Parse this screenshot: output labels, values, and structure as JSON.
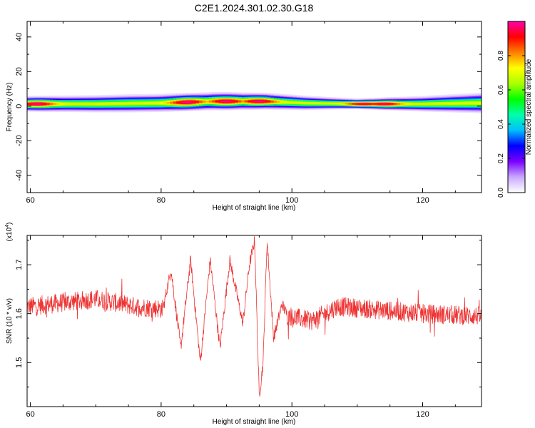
{
  "title": "C2E1.2024.301.02.30.G18",
  "chart_data": [
    {
      "type": "heatmap",
      "xlabel": "Height of straight line (km)",
      "ylabel": "Frequency (Hz)",
      "xlim": [
        59.5,
        129
      ],
      "ylim": [
        -50,
        49
      ],
      "x_ticks": [
        60,
        80,
        100,
        120
      ],
      "y_ticks": [
        40,
        20,
        0,
        -20,
        -40
      ],
      "grid": false,
      "band": {
        "center_hz": [
          {
            "x": 60,
            "y": 1.5
          },
          {
            "x": 70,
            "y": 1.5
          },
          {
            "x": 80,
            "y": 2.0
          },
          {
            "x": 88,
            "y": 3.0
          },
          {
            "x": 96,
            "y": 3.0
          },
          {
            "x": 102,
            "y": 2.0
          },
          {
            "x": 110,
            "y": 1.5
          },
          {
            "x": 120,
            "y": 1.5
          },
          {
            "x": 129,
            "y": 2.0
          }
        ],
        "halfwidth_hz": [
          {
            "x": 60,
            "y": 3.0
          },
          {
            "x": 75,
            "y": 3.5
          },
          {
            "x": 90,
            "y": 3.5
          },
          {
            "x": 100,
            "y": 3.0
          },
          {
            "x": 110,
            "y": 2.0
          },
          {
            "x": 120,
            "y": 3.0
          },
          {
            "x": 129,
            "y": 4.0
          }
        ],
        "peak_x_km": [
          61,
          84,
          90,
          95,
          111,
          114
        ]
      },
      "colorbar": {
        "label": "Normalized spectral amplitude",
        "ticks": [
          "0.0",
          "0.2",
          "0.4",
          "0.6",
          "0.8"
        ],
        "tick_values": [
          0.0,
          0.2,
          0.4,
          0.6,
          0.8
        ],
        "range": [
          0,
          1
        ],
        "colors": [
          "#ffffff",
          "#c9a9ff",
          "#7a00ff",
          "#0000ff",
          "#00bfff",
          "#00ffaa",
          "#00ff00",
          "#aaff00",
          "#ffff00",
          "#ff8000",
          "#ff0000",
          "#ff00aa"
        ]
      }
    },
    {
      "type": "line",
      "xlabel": "Height of straight line (km)",
      "ylabel": "SNR (10 * v/v)",
      "scale_label": "(x10",
      "scale_exp": "4",
      "xlim": [
        59.5,
        129
      ],
      "ylim": [
        1.41,
        1.76
      ],
      "x_ticks": [
        60,
        80,
        100,
        120
      ],
      "y_ticks": [
        1.5,
        1.6,
        1.7
      ],
      "color": "#ee3333",
      "grid": false,
      "baseline": [
        {
          "x": 60,
          "y": 1.615
        },
        {
          "x": 70,
          "y": 1.63
        },
        {
          "x": 76,
          "y": 1.615
        },
        {
          "x": 80,
          "y": 1.61
        },
        {
          "x": 96,
          "y": 1.61
        },
        {
          "x": 98,
          "y": 1.6
        },
        {
          "x": 103,
          "y": 1.585
        },
        {
          "x": 107,
          "y": 1.615
        },
        {
          "x": 120,
          "y": 1.6
        },
        {
          "x": 129,
          "y": 1.595
        }
      ],
      "noise": 0.015,
      "oscillations": [
        {
          "x": 81.5,
          "y": 1.69
        },
        {
          "x": 83.0,
          "y": 1.53
        },
        {
          "x": 84.5,
          "y": 1.71
        },
        {
          "x": 86.0,
          "y": 1.5
        },
        {
          "x": 87.5,
          "y": 1.71
        },
        {
          "x": 89.0,
          "y": 1.53
        },
        {
          "x": 90.5,
          "y": 1.71
        },
        {
          "x": 92.5,
          "y": 1.58
        },
        {
          "x": 93.5,
          "y": 1.7
        },
        {
          "x": 94.3,
          "y": 1.75
        },
        {
          "x": 95.0,
          "y": 1.43
        },
        {
          "x": 95.6,
          "y": 1.5
        },
        {
          "x": 96.2,
          "y": 1.75
        },
        {
          "x": 97.2,
          "y": 1.55
        },
        {
          "x": 98.5,
          "y": 1.62
        }
      ]
    }
  ]
}
